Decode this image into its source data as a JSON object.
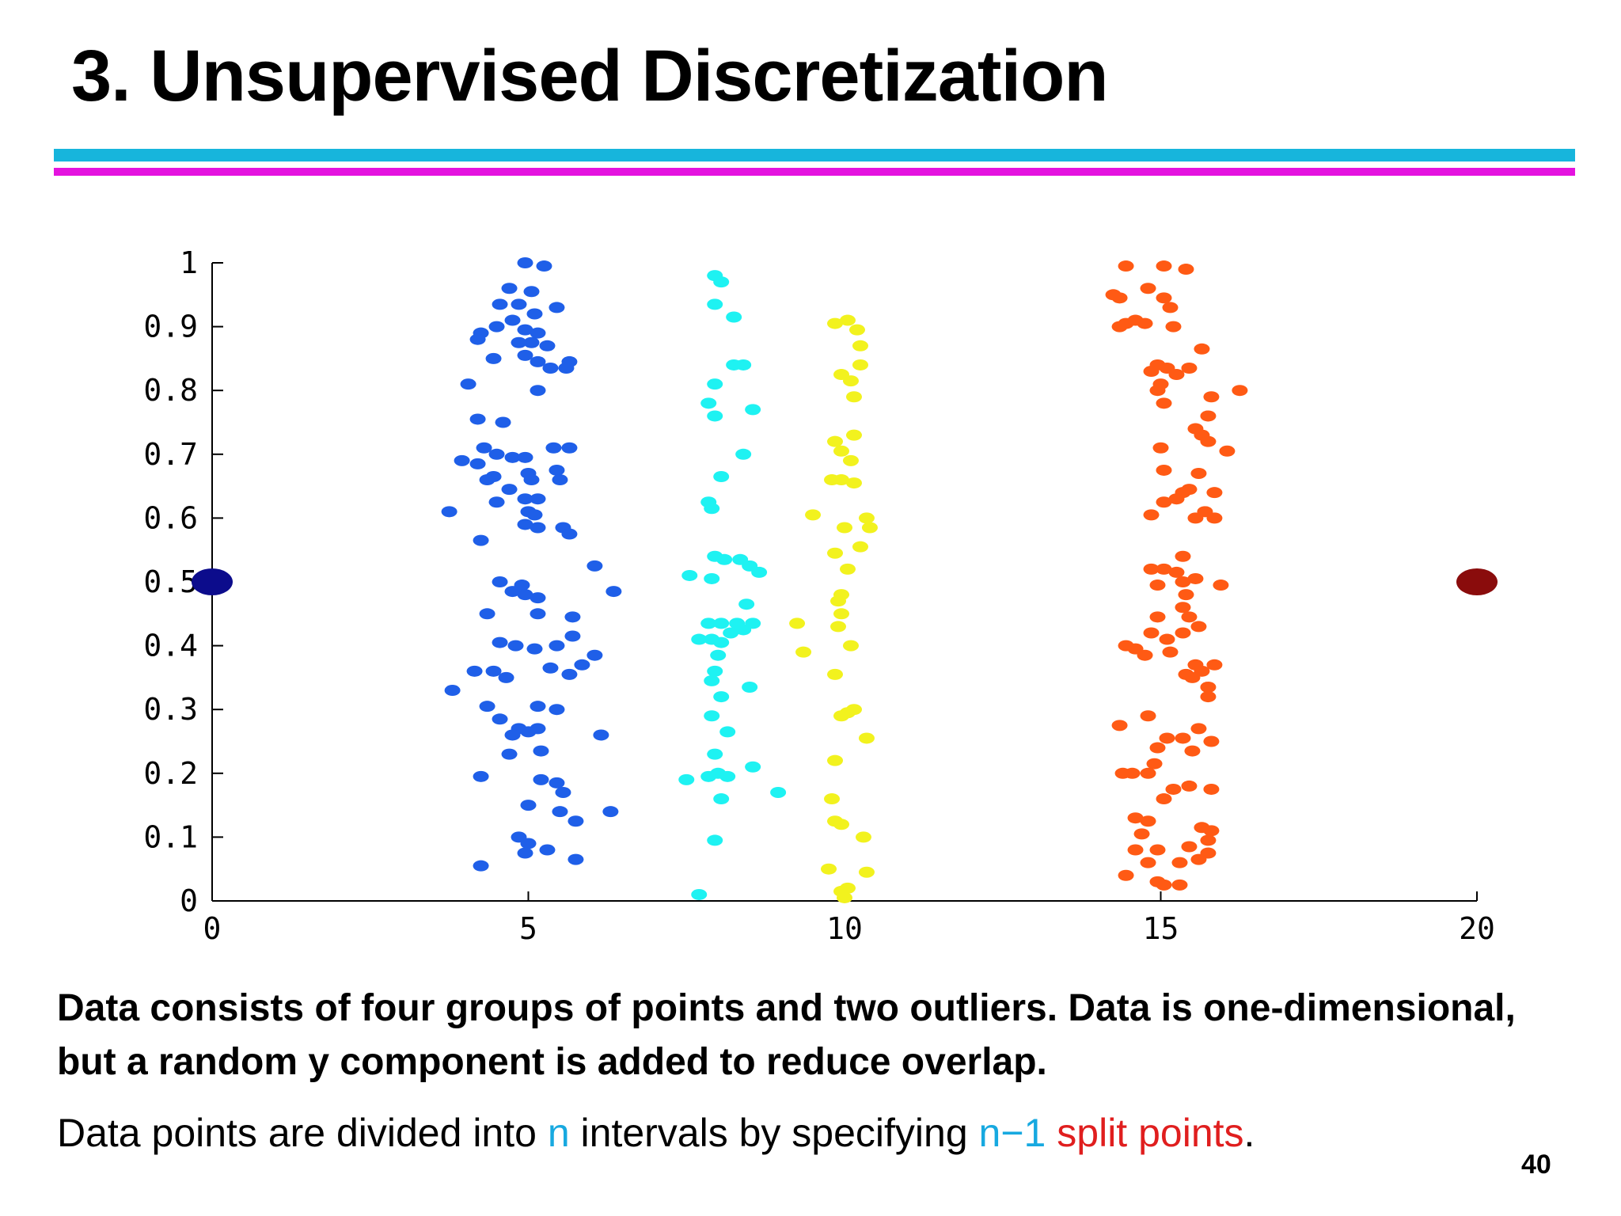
{
  "slide": {
    "title": "3. Unsupervised Discretization",
    "description_bold": "Data consists of four groups of points and two outliers. Data is one-dimensional, but a random y component is added to reduce overlap.",
    "description_parts": {
      "p1": "Data points are divided into ",
      "n1": "n",
      "p2": " intervals by specifying ",
      "n2": "n−1",
      "p3": " ",
      "split": "split points",
      "p4": "."
    },
    "page_number": "40",
    "colors": {
      "rule_cyan": "#17b5dc",
      "rule_magenta": "#e413df",
      "keyword_cyan": "#17a9e0",
      "keyword_red": "#e01e1e"
    }
  },
  "chart_data": {
    "type": "scatter",
    "title": "",
    "xlabel": "",
    "ylabel": "",
    "xlim": [
      0,
      20
    ],
    "ylim": [
      0,
      1
    ],
    "xticks": [
      "0",
      "5",
      "10",
      "15",
      "20"
    ],
    "yticks": [
      "0",
      "0.1",
      "0.2",
      "0.3",
      "0.4",
      "0.5",
      "0.6",
      "0.7",
      "0.8",
      "0.9",
      "1"
    ],
    "grid": false,
    "legend": "none",
    "series": [
      {
        "color": "#1f5fe8",
        "points": [
          [
            4.95,
            1.0
          ],
          [
            5.25,
            0.995
          ],
          [
            4.7,
            0.96
          ],
          [
            5.05,
            0.955
          ],
          [
            4.55,
            0.935
          ],
          [
            4.85,
            0.935
          ],
          [
            5.45,
            0.93
          ],
          [
            5.1,
            0.92
          ],
          [
            4.5,
            0.9
          ],
          [
            4.75,
            0.91
          ],
          [
            4.95,
            0.895
          ],
          [
            5.15,
            0.89
          ],
          [
            4.25,
            0.89
          ],
          [
            5.05,
            0.875
          ],
          [
            4.85,
            0.875
          ],
          [
            5.3,
            0.87
          ],
          [
            4.2,
            0.88
          ],
          [
            4.95,
            0.855
          ],
          [
            5.15,
            0.845
          ],
          [
            4.45,
            0.85
          ],
          [
            5.35,
            0.835
          ],
          [
            5.65,
            0.845
          ],
          [
            5.6,
            0.835
          ],
          [
            5.15,
            0.8
          ],
          [
            4.05,
            0.81
          ],
          [
            4.2,
            0.755
          ],
          [
            4.6,
            0.75
          ],
          [
            4.3,
            0.71
          ],
          [
            4.5,
            0.7
          ],
          [
            4.75,
            0.695
          ],
          [
            4.95,
            0.695
          ],
          [
            5.4,
            0.71
          ],
          [
            5.65,
            0.71
          ],
          [
            3.95,
            0.69
          ],
          [
            4.2,
            0.685
          ],
          [
            4.45,
            0.665
          ],
          [
            5.0,
            0.67
          ],
          [
            5.45,
            0.675
          ],
          [
            5.5,
            0.66
          ],
          [
            4.35,
            0.66
          ],
          [
            5.05,
            0.66
          ],
          [
            4.7,
            0.645
          ],
          [
            4.95,
            0.63
          ],
          [
            5.15,
            0.63
          ],
          [
            4.5,
            0.625
          ],
          [
            5.0,
            0.61
          ],
          [
            5.1,
            0.605
          ],
          [
            3.75,
            0.61
          ],
          [
            4.95,
            0.59
          ],
          [
            5.15,
            0.585
          ],
          [
            5.55,
            0.585
          ],
          [
            5.65,
            0.575
          ],
          [
            4.25,
            0.565
          ],
          [
            6.05,
            0.525
          ],
          [
            4.55,
            0.5
          ],
          [
            4.9,
            0.495
          ],
          [
            4.75,
            0.485
          ],
          [
            4.95,
            0.48
          ],
          [
            5.15,
            0.475
          ],
          [
            6.35,
            0.485
          ],
          [
            4.35,
            0.45
          ],
          [
            5.15,
            0.45
          ],
          [
            5.7,
            0.445
          ],
          [
            4.55,
            0.405
          ],
          [
            4.8,
            0.4
          ],
          [
            5.1,
            0.395
          ],
          [
            5.45,
            0.4
          ],
          [
            5.7,
            0.415
          ],
          [
            6.05,
            0.385
          ],
          [
            5.85,
            0.37
          ],
          [
            4.15,
            0.36
          ],
          [
            4.45,
            0.36
          ],
          [
            4.65,
            0.35
          ],
          [
            5.35,
            0.365
          ],
          [
            5.65,
            0.355
          ],
          [
            3.8,
            0.33
          ],
          [
            4.35,
            0.305
          ],
          [
            4.55,
            0.285
          ],
          [
            5.15,
            0.305
          ],
          [
            5.45,
            0.3
          ],
          [
            4.85,
            0.27
          ],
          [
            5.15,
            0.27
          ],
          [
            4.75,
            0.26
          ],
          [
            5.0,
            0.265
          ],
          [
            6.15,
            0.26
          ],
          [
            4.7,
            0.23
          ],
          [
            5.2,
            0.235
          ],
          [
            4.25,
            0.195
          ],
          [
            5.2,
            0.19
          ],
          [
            5.45,
            0.185
          ],
          [
            5.55,
            0.17
          ],
          [
            5.0,
            0.15
          ],
          [
            5.5,
            0.14
          ],
          [
            6.3,
            0.14
          ],
          [
            5.75,
            0.125
          ],
          [
            4.85,
            0.1
          ],
          [
            5.0,
            0.09
          ],
          [
            4.95,
            0.075
          ],
          [
            5.3,
            0.08
          ],
          [
            5.75,
            0.065
          ],
          [
            4.25,
            0.055
          ]
        ]
      },
      {
        "color": "#1ef2f2",
        "points": [
          [
            7.95,
            0.98
          ],
          [
            8.05,
            0.97
          ],
          [
            7.95,
            0.935
          ],
          [
            8.25,
            0.915
          ],
          [
            8.25,
            0.84
          ],
          [
            8.4,
            0.84
          ],
          [
            7.95,
            0.81
          ],
          [
            7.85,
            0.78
          ],
          [
            8.55,
            0.77
          ],
          [
            7.95,
            0.76
          ],
          [
            8.4,
            0.7
          ],
          [
            8.05,
            0.665
          ],
          [
            7.85,
            0.625
          ],
          [
            7.9,
            0.615
          ],
          [
            7.95,
            0.54
          ],
          [
            8.1,
            0.535
          ],
          [
            8.35,
            0.535
          ],
          [
            8.5,
            0.525
          ],
          [
            8.65,
            0.515
          ],
          [
            7.55,
            0.51
          ],
          [
            7.9,
            0.505
          ],
          [
            8.45,
            0.465
          ],
          [
            7.85,
            0.435
          ],
          [
            8.05,
            0.435
          ],
          [
            8.3,
            0.435
          ],
          [
            8.55,
            0.435
          ],
          [
            8.4,
            0.425
          ],
          [
            8.2,
            0.42
          ],
          [
            7.7,
            0.41
          ],
          [
            7.9,
            0.41
          ],
          [
            8.05,
            0.405
          ],
          [
            8.0,
            0.385
          ],
          [
            7.95,
            0.36
          ],
          [
            7.9,
            0.345
          ],
          [
            8.5,
            0.335
          ],
          [
            8.05,
            0.32
          ],
          [
            7.9,
            0.29
          ],
          [
            8.15,
            0.265
          ],
          [
            7.95,
            0.23
          ],
          [
            8.55,
            0.21
          ],
          [
            8.0,
            0.2
          ],
          [
            7.5,
            0.19
          ],
          [
            7.85,
            0.195
          ],
          [
            8.15,
            0.195
          ],
          [
            8.95,
            0.17
          ],
          [
            8.05,
            0.16
          ],
          [
            7.95,
            0.095
          ],
          [
            7.7,
            0.01
          ]
        ]
      },
      {
        "color": "#f2f21e",
        "points": [
          [
            9.85,
            0.905
          ],
          [
            10.05,
            0.91
          ],
          [
            10.2,
            0.895
          ],
          [
            10.25,
            0.87
          ],
          [
            10.25,
            0.84
          ],
          [
            9.95,
            0.825
          ],
          [
            10.1,
            0.815
          ],
          [
            10.15,
            0.79
          ],
          [
            10.15,
            0.73
          ],
          [
            9.85,
            0.72
          ],
          [
            9.95,
            0.705
          ],
          [
            10.1,
            0.69
          ],
          [
            9.8,
            0.66
          ],
          [
            9.95,
            0.66
          ],
          [
            10.15,
            0.655
          ],
          [
            9.5,
            0.605
          ],
          [
            10.35,
            0.6
          ],
          [
            10.0,
            0.585
          ],
          [
            10.4,
            0.585
          ],
          [
            10.25,
            0.555
          ],
          [
            9.85,
            0.545
          ],
          [
            10.05,
            0.52
          ],
          [
            9.95,
            0.48
          ],
          [
            9.9,
            0.47
          ],
          [
            9.95,
            0.45
          ],
          [
            9.9,
            0.43
          ],
          [
            9.25,
            0.435
          ],
          [
            10.1,
            0.4
          ],
          [
            9.35,
            0.39
          ],
          [
            9.85,
            0.355
          ],
          [
            10.05,
            0.295
          ],
          [
            10.15,
            0.3
          ],
          [
            9.95,
            0.29
          ],
          [
            10.35,
            0.255
          ],
          [
            9.85,
            0.22
          ],
          [
            9.8,
            0.16
          ],
          [
            9.85,
            0.125
          ],
          [
            9.95,
            0.12
          ],
          [
            10.3,
            0.1
          ],
          [
            9.75,
            0.05
          ],
          [
            10.35,
            0.045
          ],
          [
            10.05,
            0.02
          ],
          [
            9.95,
            0.015
          ],
          [
            10.0,
            0.005
          ]
        ]
      },
      {
        "color": "#ff5a14",
        "points": [
          [
            14.45,
            0.995
          ],
          [
            15.05,
            0.995
          ],
          [
            15.4,
            0.99
          ],
          [
            14.8,
            0.96
          ],
          [
            15.05,
            0.945
          ],
          [
            14.25,
            0.95
          ],
          [
            14.35,
            0.945
          ],
          [
            15.15,
            0.93
          ],
          [
            14.6,
            0.91
          ],
          [
            14.45,
            0.905
          ],
          [
            14.75,
            0.905
          ],
          [
            14.35,
            0.9
          ],
          [
            15.2,
            0.9
          ],
          [
            15.65,
            0.865
          ],
          [
            14.95,
            0.84
          ],
          [
            15.45,
            0.835
          ],
          [
            15.1,
            0.835
          ],
          [
            14.85,
            0.83
          ],
          [
            15.25,
            0.825
          ],
          [
            15.0,
            0.81
          ],
          [
            14.95,
            0.8
          ],
          [
            15.8,
            0.79
          ],
          [
            16.25,
            0.8
          ],
          [
            15.05,
            0.78
          ],
          [
            15.75,
            0.76
          ],
          [
            15.55,
            0.74
          ],
          [
            15.65,
            0.73
          ],
          [
            15.75,
            0.72
          ],
          [
            16.05,
            0.705
          ],
          [
            15.0,
            0.71
          ],
          [
            15.05,
            0.675
          ],
          [
            15.6,
            0.67
          ],
          [
            15.45,
            0.645
          ],
          [
            15.35,
            0.64
          ],
          [
            15.85,
            0.64
          ],
          [
            15.25,
            0.63
          ],
          [
            15.05,
            0.625
          ],
          [
            15.7,
            0.61
          ],
          [
            15.85,
            0.6
          ],
          [
            15.55,
            0.6
          ],
          [
            14.85,
            0.605
          ],
          [
            15.35,
            0.54
          ],
          [
            14.85,
            0.52
          ],
          [
            15.05,
            0.52
          ],
          [
            15.25,
            0.515
          ],
          [
            15.55,
            0.505
          ],
          [
            14.95,
            0.495
          ],
          [
            15.35,
            0.5
          ],
          [
            15.95,
            0.495
          ],
          [
            15.4,
            0.48
          ],
          [
            15.35,
            0.46
          ],
          [
            15.45,
            0.445
          ],
          [
            14.95,
            0.445
          ],
          [
            15.6,
            0.43
          ],
          [
            14.85,
            0.42
          ],
          [
            15.1,
            0.41
          ],
          [
            15.35,
            0.42
          ],
          [
            14.45,
            0.4
          ],
          [
            14.6,
            0.395
          ],
          [
            14.75,
            0.385
          ],
          [
            15.15,
            0.39
          ],
          [
            15.55,
            0.37
          ],
          [
            15.85,
            0.37
          ],
          [
            15.65,
            0.36
          ],
          [
            15.4,
            0.355
          ],
          [
            15.5,
            0.35
          ],
          [
            15.75,
            0.335
          ],
          [
            15.75,
            0.32
          ],
          [
            14.35,
            0.275
          ],
          [
            14.8,
            0.29
          ],
          [
            15.6,
            0.27
          ],
          [
            15.35,
            0.255
          ],
          [
            15.1,
            0.255
          ],
          [
            14.95,
            0.24
          ],
          [
            15.8,
            0.25
          ],
          [
            15.5,
            0.235
          ],
          [
            14.55,
            0.2
          ],
          [
            14.4,
            0.2
          ],
          [
            14.8,
            0.2
          ],
          [
            14.9,
            0.215
          ],
          [
            15.45,
            0.18
          ],
          [
            15.2,
            0.175
          ],
          [
            15.8,
            0.175
          ],
          [
            15.05,
            0.16
          ],
          [
            14.6,
            0.13
          ],
          [
            14.8,
            0.125
          ],
          [
            15.65,
            0.115
          ],
          [
            15.8,
            0.11
          ],
          [
            14.7,
            0.105
          ],
          [
            15.75,
            0.095
          ],
          [
            15.45,
            0.085
          ],
          [
            14.6,
            0.08
          ],
          [
            14.95,
            0.08
          ],
          [
            15.75,
            0.075
          ],
          [
            15.6,
            0.065
          ],
          [
            15.3,
            0.06
          ],
          [
            14.8,
            0.06
          ],
          [
            14.45,
            0.04
          ],
          [
            14.95,
            0.03
          ],
          [
            15.05,
            0.025
          ],
          [
            15.3,
            0.025
          ]
        ]
      },
      {
        "color": "#0c0c8c",
        "size": "large",
        "points": [
          [
            0.0,
            0.5
          ]
        ]
      },
      {
        "color": "#8a0c0c",
        "size": "large",
        "points": [
          [
            20.0,
            0.5
          ]
        ]
      }
    ]
  }
}
